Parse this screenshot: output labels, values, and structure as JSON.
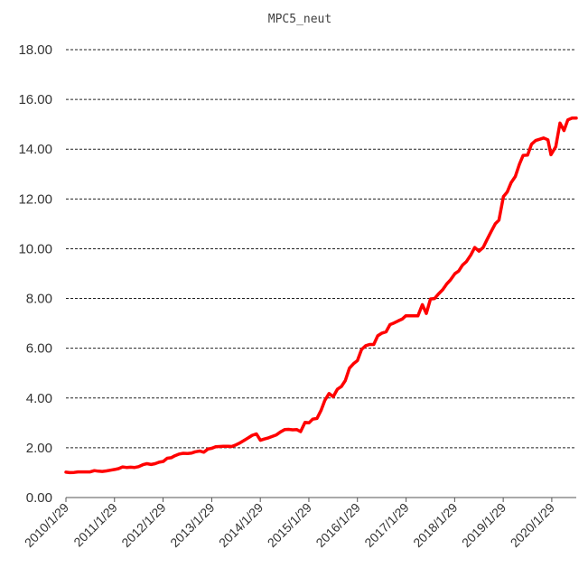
{
  "chart_data": {
    "type": "line",
    "title": "MPC5_neut",
    "xlabel": "",
    "ylabel": "",
    "ylim": [
      0,
      18
    ],
    "yticks": [
      "0.00",
      "2.00",
      "4.00",
      "6.00",
      "8.00",
      "10.00",
      "12.00",
      "14.00",
      "16.00",
      "18.00"
    ],
    "xticks": [
      "2010/1/29",
      "2011/1/29",
      "2012/1/29",
      "2013/1/29",
      "2014/1/29",
      "2015/1/29",
      "2016/1/29",
      "2017/1/29",
      "2018/1/29",
      "2019/1/29",
      "2020/1/29"
    ],
    "x_range": [
      "2010-01-29",
      "2020-07-31"
    ],
    "grid": "horizontal dashed",
    "line_color": "#ff0000",
    "series": [
      {
        "points": [
          [
            "2010-01-29",
            1.02
          ],
          [
            "2010-02-26",
            1.0
          ],
          [
            "2010-03-31",
            1.01
          ],
          [
            "2010-04-30",
            1.03
          ],
          [
            "2010-05-31",
            1.03
          ],
          [
            "2010-06-30",
            1.03
          ],
          [
            "2010-07-30",
            1.03
          ],
          [
            "2010-08-31",
            1.08
          ],
          [
            "2010-09-30",
            1.06
          ],
          [
            "2010-10-29",
            1.05
          ],
          [
            "2010-11-30",
            1.07
          ],
          [
            "2010-12-31",
            1.1
          ],
          [
            "2011-01-31",
            1.13
          ],
          [
            "2011-02-28",
            1.16
          ],
          [
            "2011-03-31",
            1.23
          ],
          [
            "2011-04-29",
            1.21
          ],
          [
            "2011-05-31",
            1.22
          ],
          [
            "2011-06-30",
            1.21
          ],
          [
            "2011-07-29",
            1.24
          ],
          [
            "2011-08-31",
            1.32
          ],
          [
            "2011-09-30",
            1.36
          ],
          [
            "2011-10-31",
            1.33
          ],
          [
            "2011-11-30",
            1.36
          ],
          [
            "2011-12-30",
            1.42
          ],
          [
            "2012-01-31",
            1.45
          ],
          [
            "2012-02-29",
            1.58
          ],
          [
            "2012-03-30",
            1.6
          ],
          [
            "2012-04-27",
            1.68
          ],
          [
            "2012-05-31",
            1.75
          ],
          [
            "2012-06-29",
            1.78
          ],
          [
            "2012-07-31",
            1.77
          ],
          [
            "2012-08-31",
            1.79
          ],
          [
            "2012-09-28",
            1.84
          ],
          [
            "2012-10-31",
            1.87
          ],
          [
            "2012-11-30",
            1.82
          ],
          [
            "2012-12-31",
            1.95
          ],
          [
            "2013-01-31",
            1.98
          ],
          [
            "2013-02-28",
            2.04
          ],
          [
            "2013-03-29",
            2.05
          ],
          [
            "2013-04-26",
            2.06
          ],
          [
            "2013-05-31",
            2.06
          ],
          [
            "2013-06-28",
            2.05
          ],
          [
            "2013-07-31",
            2.12
          ],
          [
            "2013-08-30",
            2.2
          ],
          [
            "2013-09-30",
            2.3
          ],
          [
            "2013-10-31",
            2.4
          ],
          [
            "2013-11-29",
            2.5
          ],
          [
            "2013-12-31",
            2.56
          ],
          [
            "2014-01-30",
            2.3
          ],
          [
            "2014-02-28",
            2.35
          ],
          [
            "2014-03-31",
            2.4
          ],
          [
            "2014-04-30",
            2.46
          ],
          [
            "2014-05-30",
            2.52
          ],
          [
            "2014-06-30",
            2.64
          ],
          [
            "2014-07-31",
            2.73
          ],
          [
            "2014-08-29",
            2.74
          ],
          [
            "2014-09-30",
            2.72
          ],
          [
            "2014-10-31",
            2.73
          ],
          [
            "2014-11-28",
            2.65
          ],
          [
            "2014-12-31",
            3.02
          ],
          [
            "2015-01-30",
            3.0
          ],
          [
            "2015-02-27",
            3.15
          ],
          [
            "2015-03-31",
            3.18
          ],
          [
            "2015-04-30",
            3.5
          ],
          [
            "2015-05-29",
            3.9
          ],
          [
            "2015-06-30",
            4.18
          ],
          [
            "2015-07-31",
            4.05
          ],
          [
            "2015-08-31",
            4.35
          ],
          [
            "2015-09-30",
            4.46
          ],
          [
            "2015-10-30",
            4.7
          ],
          [
            "2015-11-30",
            5.2
          ],
          [
            "2015-12-31",
            5.38
          ],
          [
            "2016-01-29",
            5.5
          ],
          [
            "2016-02-29",
            5.95
          ],
          [
            "2016-03-31",
            6.1
          ],
          [
            "2016-04-29",
            6.15
          ],
          [
            "2016-05-31",
            6.15
          ],
          [
            "2016-06-30",
            6.5
          ],
          [
            "2016-07-29",
            6.6
          ],
          [
            "2016-08-31",
            6.66
          ],
          [
            "2016-09-30",
            6.95
          ],
          [
            "2016-10-31",
            7.02
          ],
          [
            "2016-11-30",
            7.1
          ],
          [
            "2016-12-30",
            7.17
          ],
          [
            "2017-01-26",
            7.3
          ],
          [
            "2017-02-28",
            7.3
          ],
          [
            "2017-03-31",
            7.3
          ],
          [
            "2017-04-28",
            7.3
          ],
          [
            "2017-05-31",
            7.75
          ],
          [
            "2017-06-30",
            7.4
          ],
          [
            "2017-07-31",
            7.98
          ],
          [
            "2017-08-31",
            8.0
          ],
          [
            "2017-09-29",
            8.18
          ],
          [
            "2017-10-31",
            8.35
          ],
          [
            "2017-11-30",
            8.58
          ],
          [
            "2017-12-29",
            8.75
          ],
          [
            "2018-01-31",
            9.0
          ],
          [
            "2018-02-28",
            9.1
          ],
          [
            "2018-03-30",
            9.35
          ],
          [
            "2018-04-27",
            9.48
          ],
          [
            "2018-05-31",
            9.75
          ],
          [
            "2018-06-29",
            10.05
          ],
          [
            "2018-07-31",
            9.9
          ],
          [
            "2018-08-31",
            10.05
          ],
          [
            "2018-09-28",
            10.35
          ],
          [
            "2018-10-31",
            10.7
          ],
          [
            "2018-11-30",
            11.0
          ],
          [
            "2018-12-28",
            11.15
          ],
          [
            "2019-01-31",
            12.1
          ],
          [
            "2019-02-28",
            12.28
          ],
          [
            "2019-03-29",
            12.65
          ],
          [
            "2019-04-30",
            12.9
          ],
          [
            "2019-05-31",
            13.4
          ],
          [
            "2019-06-28",
            13.75
          ],
          [
            "2019-07-31",
            13.76
          ],
          [
            "2019-08-30",
            14.2
          ],
          [
            "2019-09-30",
            14.35
          ],
          [
            "2019-10-31",
            14.4
          ],
          [
            "2019-11-29",
            14.45
          ],
          [
            "2019-12-31",
            14.38
          ],
          [
            "2020-01-23",
            13.78
          ],
          [
            "2020-02-28",
            14.1
          ],
          [
            "2020-03-31",
            15.05
          ],
          [
            "2020-04-30",
            14.75
          ],
          [
            "2020-05-29",
            15.18
          ],
          [
            "2020-06-30",
            15.25
          ],
          [
            "2020-07-31",
            15.25
          ]
        ]
      }
    ]
  }
}
